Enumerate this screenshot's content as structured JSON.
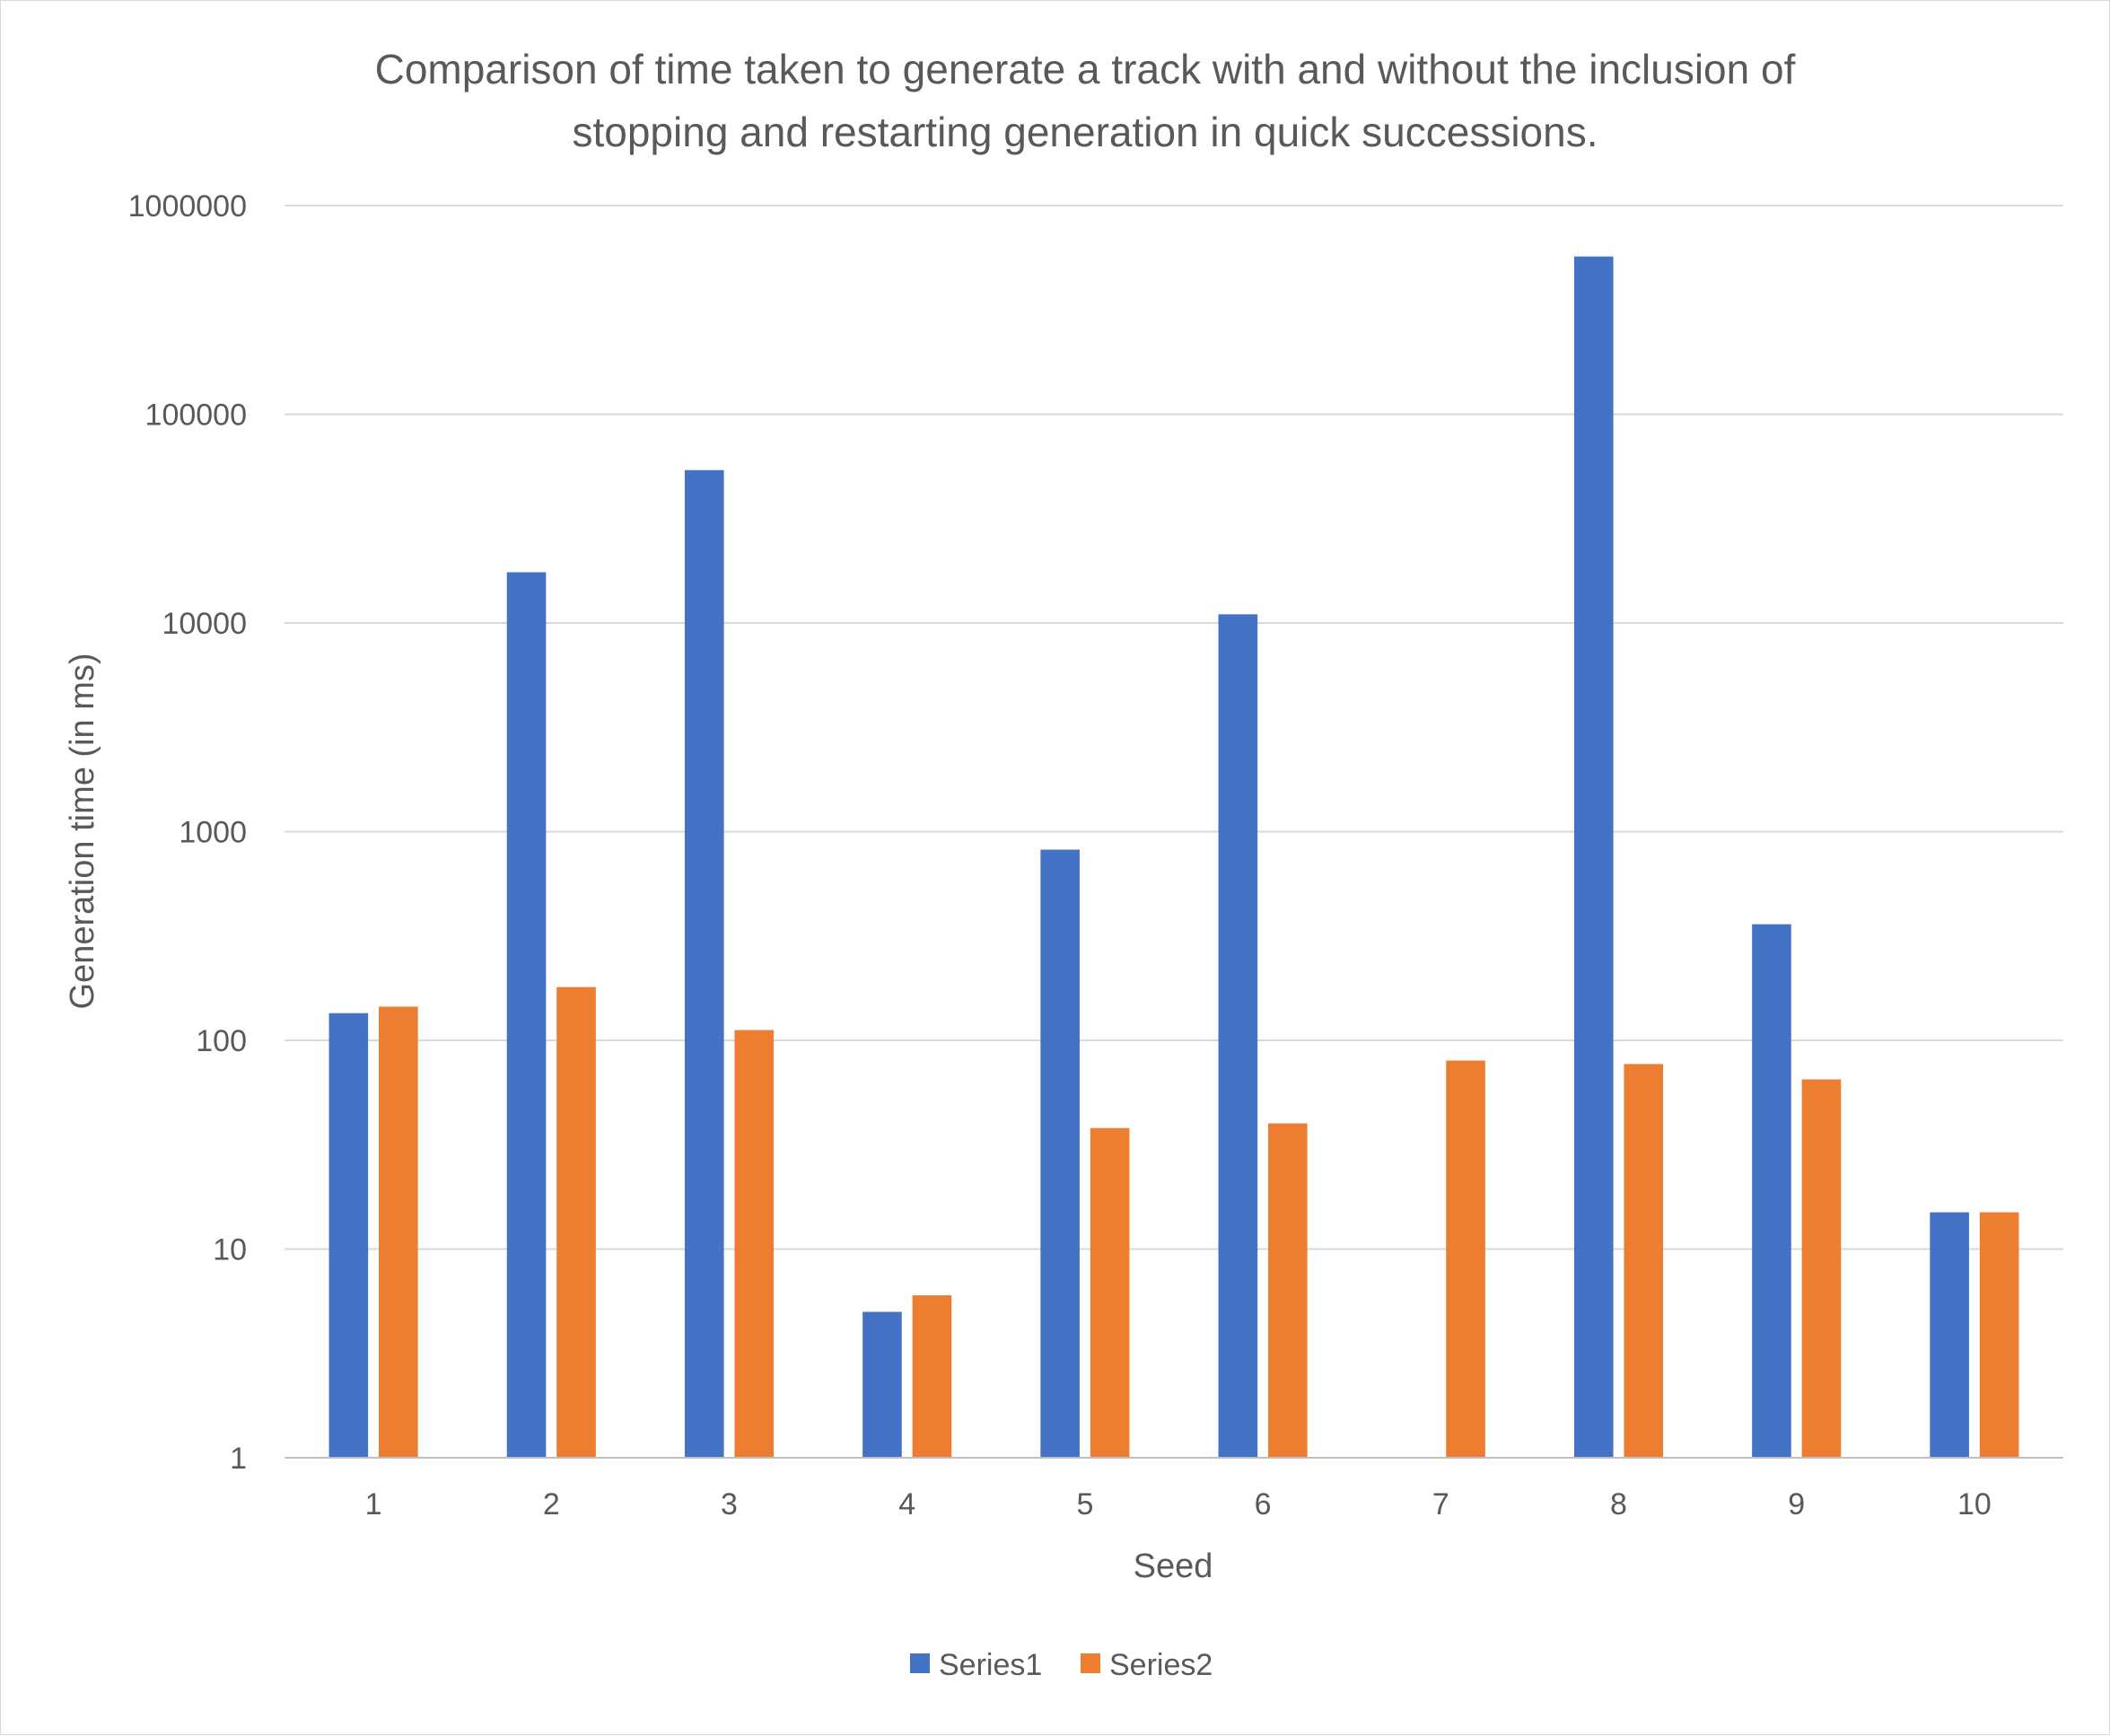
{
  "chart_data": {
    "type": "bar",
    "title": "Comparison of time taken to generate a track with and without the inclusion of stopping and restarting generation in quick successions.",
    "title_lines": [
      "Comparison of time taken to generate a track with and without the inclusion of",
      "stopping and restarting generation in quick successions."
    ],
    "xlabel": "Seed",
    "ylabel": "Generation time (in ms)",
    "yscale": "log",
    "ylim": [
      1,
      1000000
    ],
    "y_ticks": [
      "1",
      "10",
      "100",
      "1000",
      "10000",
      "100000",
      "1000000"
    ],
    "categories": [
      "1",
      "2",
      "3",
      "4",
      "5",
      "6",
      "7",
      "8",
      "9",
      "10"
    ],
    "series": [
      {
        "name": "Series1",
        "color": "#4472c4",
        "values": [
          135,
          17500,
          54000,
          5,
          820,
          11000,
          null,
          570000,
          360,
          15
        ]
      },
      {
        "name": "Series2",
        "color": "#ed7d31",
        "values": [
          145,
          180,
          112,
          6,
          38,
          40,
          80,
          77,
          65,
          15
        ]
      }
    ],
    "grid": true,
    "legend": "bottom"
  }
}
